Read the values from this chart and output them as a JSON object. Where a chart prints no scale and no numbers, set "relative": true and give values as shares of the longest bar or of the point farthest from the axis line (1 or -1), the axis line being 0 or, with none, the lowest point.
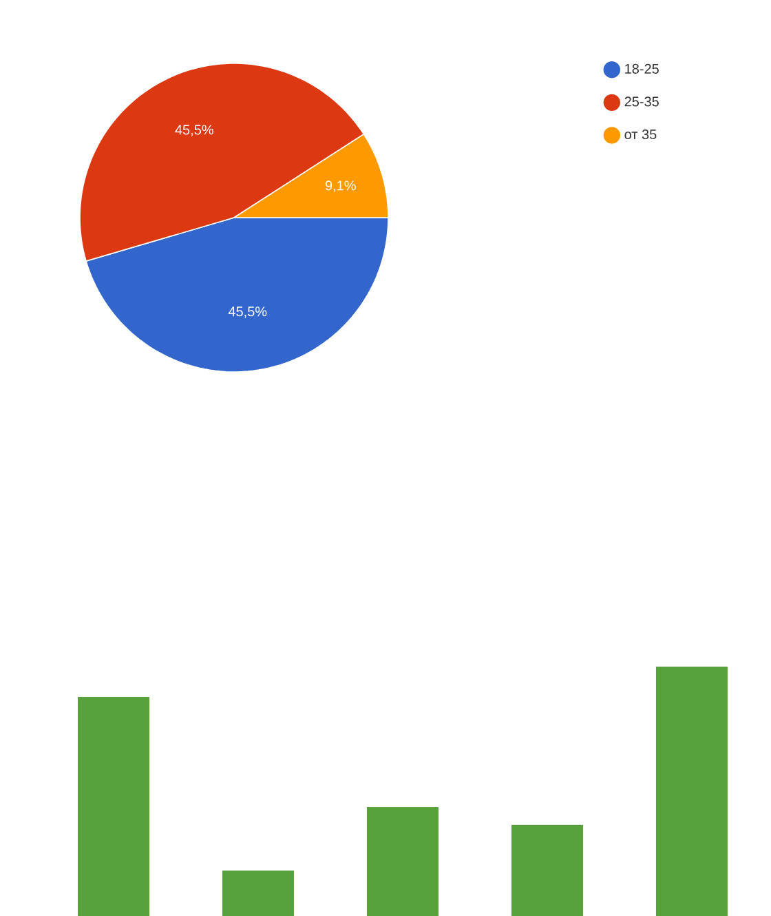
{
  "chart_data": [
    {
      "type": "pie",
      "categories": [
        "18-25",
        "25-35",
        "от 35"
      ],
      "values": [
        45.5,
        45.5,
        9.1
      ],
      "colors": [
        "#3366cc",
        "#dc3912",
        "#ff9900"
      ],
      "value_labels": [
        "45,5%",
        "45,5%",
        "9,1%"
      ],
      "legend": "top right"
    },
    {
      "type": "bar",
      "relative": true,
      "categories": [
        null,
        null,
        null,
        null,
        null
      ],
      "values": [
        0.878,
        0.182,
        0.436,
        0.365,
        1
      ],
      "color": "#58a23c"
    }
  ]
}
